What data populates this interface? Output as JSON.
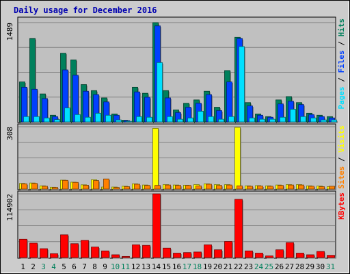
{
  "chart_data": {
    "type": "bar",
    "title": "Daily usage for December 2016",
    "categories": [
      "1",
      "2",
      "3",
      "4",
      "5",
      "6",
      "7",
      "8",
      "9",
      "10",
      "11",
      "12",
      "13",
      "14",
      "15",
      "16",
      "17",
      "18",
      "19",
      "20",
      "21",
      "22",
      "23",
      "24",
      "25",
      "26",
      "27",
      "28",
      "29",
      "30",
      "31"
    ],
    "weekend_days": [
      "3",
      "4",
      "10",
      "11",
      "17",
      "18",
      "24",
      "25",
      "31"
    ],
    "panels": [
      {
        "name": "pages-files-hits",
        "ymax_label": "1489",
        "ymax": 1489,
        "axis_label_parts": [
          {
            "text": "Pages",
            "color": "#00e0ff"
          },
          {
            "text": " / ",
            "color": "#000000"
          },
          {
            "text": "Files",
            "color": "#0040ff"
          },
          {
            "text": " / ",
            "color": "#000000"
          },
          {
            "text": "Hits",
            "color": "#00805c"
          }
        ],
        "series": [
          {
            "name": "Hits",
            "color": "#00805c",
            "values": [
              600,
              1250,
              420,
              100,
              1030,
              930,
              560,
              470,
              360,
              120,
              25,
              520,
              430,
              1489,
              470,
              180,
              280,
              330,
              460,
              220,
              770,
              1270,
              290,
              120,
              80,
              330,
              380,
              290,
              130,
              100,
              80
            ]
          },
          {
            "name": "Files",
            "color": "#0040ff",
            "values": [
              520,
              490,
              350,
              80,
              780,
              700,
              460,
              410,
              300,
              100,
              20,
              450,
              370,
              1440,
              360,
              140,
              220,
              280,
              410,
              170,
              600,
              1250,
              240,
              100,
              70,
              270,
              310,
              260,
              110,
              80,
              60
            ]
          },
          {
            "name": "Pages",
            "color": "#00e0ff",
            "values": [
              80,
              80,
              60,
              35,
              210,
              110,
              70,
              130,
              100,
              30,
              10,
              80,
              70,
              890,
              80,
              40,
              60,
              160,
              80,
              40,
              80,
              1130,
              60,
              40,
              40,
              70,
              190,
              80,
              60,
              30,
              30
            ]
          }
        ]
      },
      {
        "name": "visits-sites",
        "ymax_label": "308",
        "ymax": 308,
        "axis_label_parts": [
          {
            "text": "Sites",
            "color": "#ff8000"
          },
          {
            "text": " / ",
            "color": "#000000"
          },
          {
            "text": "Visits",
            "color": "#ffff00"
          }
        ],
        "series": [
          {
            "name": "Visits",
            "color": "#ffff00",
            "values": [
              28,
              30,
              16,
              9,
              44,
              34,
              21,
              46,
              10,
              10,
              14,
              26,
              20,
              300,
              22,
              20,
              19,
              22,
              26,
              22,
              22,
              305,
              16,
              17,
              16,
              20,
              22,
              22,
              16,
              15,
              12
            ]
          },
          {
            "name": "Sites",
            "color": "#ff8000",
            "values": [
              26,
              28,
              14,
              8,
              43,
              33,
              19,
              42,
              50,
              8,
              12,
              24,
              18,
              18,
              20,
              18,
              18,
              16,
              24,
              18,
              20,
              16,
              14,
              15,
              14,
              18,
              20,
              20,
              14,
              12,
              14
            ]
          }
        ]
      },
      {
        "name": "kbytes",
        "ymax_label": "114902",
        "ymax": 114902,
        "axis_label_parts": [
          {
            "text": "KBytes",
            "color": "#ff0000"
          }
        ],
        "series": [
          {
            "name": "KBytes",
            "color": "#ff0000",
            "values": [
              33000,
              26000,
              16000,
              7000,
              41000,
              25000,
              31000,
              19000,
              12000,
              5000,
              2000,
              23000,
              22000,
              114902,
              17000,
              8000,
              9000,
              10000,
              23000,
              14000,
              29000,
              105000,
              12000,
              8000,
              3000,
              14000,
              27000,
              8000,
              5000,
              11000,
              4000
            ]
          }
        ]
      }
    ]
  }
}
